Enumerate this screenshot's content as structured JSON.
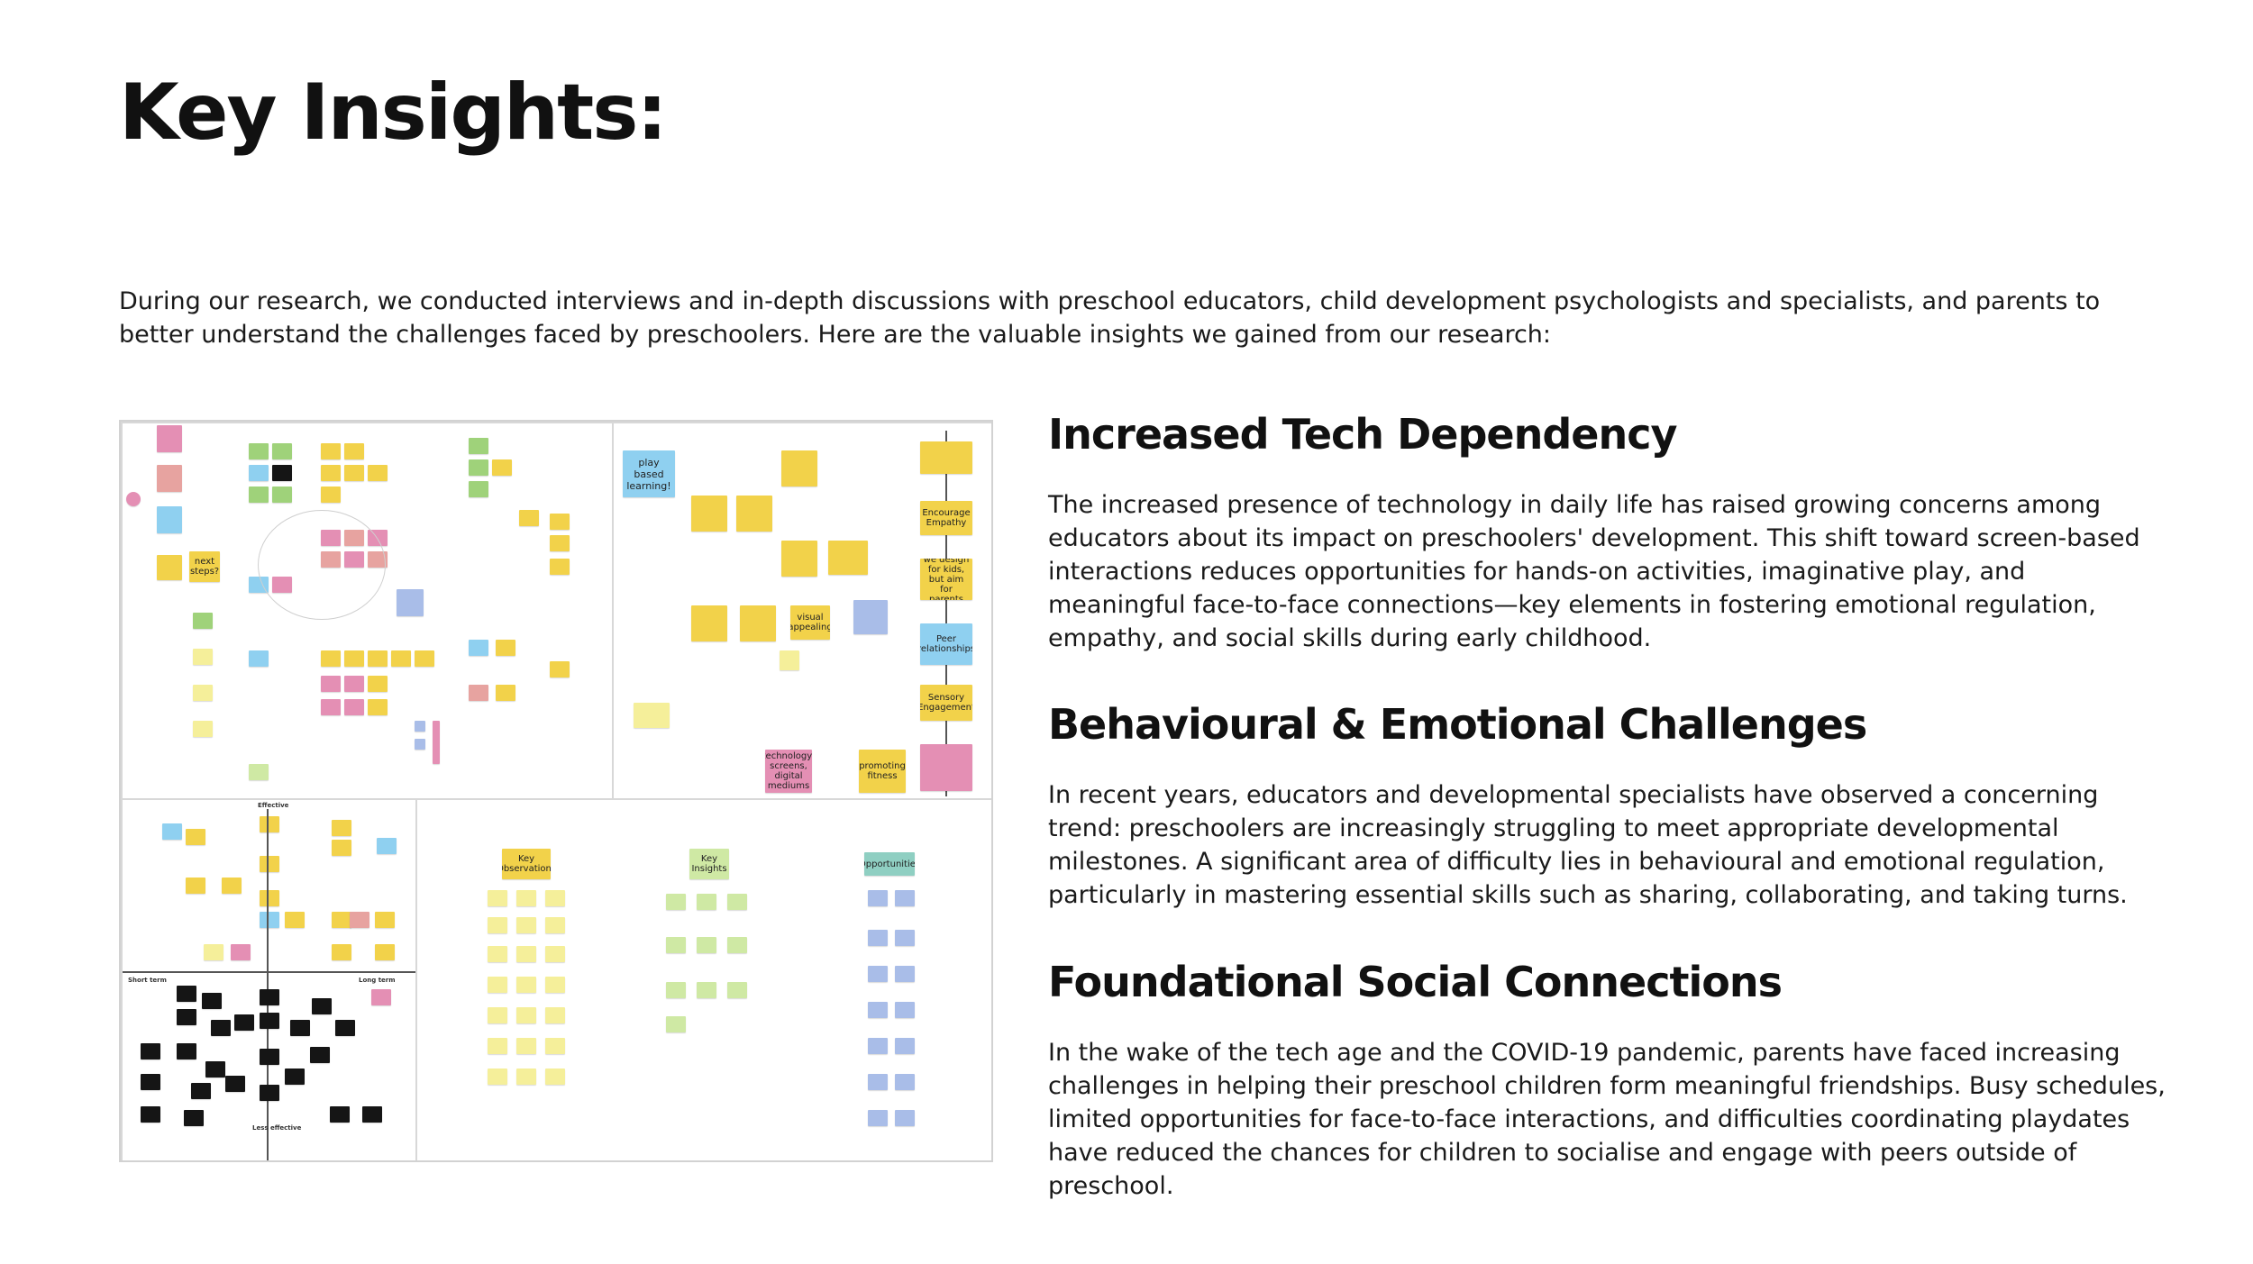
{
  "page": {
    "title": "Key Insights:",
    "intro": "During our research, we conducted interviews and in-depth discussions with preschool educators, child development psychologists and specialists, and parents to better understand the challenges faced by preschoolers. Here are the valuable insights we gained from our research:"
  },
  "board": {
    "labels": {
      "play_based": "play based learning!",
      "next_steps": "next steps?",
      "encourage_empathy": "Encourage Empathy",
      "we_design": "we design for kids, but aim for parents",
      "peer_relationships": "Peer relationships",
      "sensory": "Sensory Engagement",
      "technology": "technology, screens, digital mediums",
      "fitness": "promoting fitness",
      "visual": "visual appealing",
      "key_observations": "Key Observations",
      "key_insights": "Key Insights",
      "opportunities": "Opportunities",
      "effective": "Effective",
      "less_effective": "Less effective",
      "short_term": "Short term",
      "long_term": "Long term"
    }
  },
  "insights": [
    {
      "heading": "Increased Tech Dependency",
      "body": "The increased presence of technology in daily life has raised growing concerns among educators about its impact on preschoolers' development. This shift toward screen-based interactions reduces opportunities for hands-on activities, imaginative play, and meaningful face-to-face connections—key elements in fostering emotional regulation, empathy, and social skills during early childhood."
    },
    {
      "heading": "Behavioural & Emotional Challenges",
      "body": "In recent years, educators and developmental specialists have observed a concerning trend: preschoolers are increasingly struggling to meet appropriate developmental milestones. A significant area of difficulty lies in behavioural and emotional regulation, particularly in mastering essential skills such as sharing, collaborating, and taking turns."
    },
    {
      "heading": "Foundational Social Connections",
      "body": "In the wake of the tech age and the COVID-19 pandemic, parents have faced increasing challenges in helping their preschool children form meaningful friendships. Busy schedules, limited opportunities for face-to-face interactions, and difficulties coordinating playdates have reduced the chances for children to socialise and engage with peers outside of preschool."
    }
  ]
}
